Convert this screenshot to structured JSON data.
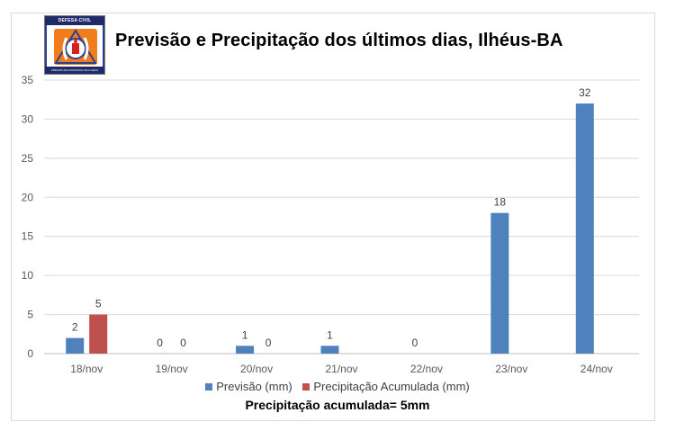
{
  "logo": {
    "top_text": "DEFESA CIVIL",
    "bottom_text": "PREFEITURA MUNICIPAL DE ILHÉUS"
  },
  "colors": {
    "previsao": "#4f81bd",
    "precipitacao": "#c0504d",
    "logo_orange": "#f07c1b",
    "logo_blue": "#2f3f8f",
    "logo_red": "#d82020"
  },
  "chart_data": {
    "type": "bar",
    "title": "Previsão e Precipitação dos últimos dias, Ilhéus-BA",
    "categories": [
      "18/nov",
      "19/nov",
      "20/nov",
      "21/nov",
      "22/nov",
      "23/nov",
      "24/nov"
    ],
    "series": [
      {
        "name": "Previsão (mm)",
        "values": [
          2,
          0,
          1,
          1,
          0,
          18,
          32
        ],
        "labels": [
          "2",
          "0",
          "1",
          "1",
          "0",
          "18",
          "32"
        ]
      },
      {
        "name": "Precipitação Acumulada (mm)",
        "values": [
          5,
          0,
          0,
          null,
          null,
          null,
          null
        ],
        "labels": [
          "5",
          "0",
          "0",
          "",
          "",
          "",
          ""
        ]
      }
    ],
    "ylim": [
      0,
      35
    ],
    "yticks": [
      0,
      5,
      10,
      15,
      20,
      25,
      30,
      35
    ],
    "grid": true,
    "legend_position": "bottom"
  },
  "footer": "Precipitação acumulada= 5mm"
}
